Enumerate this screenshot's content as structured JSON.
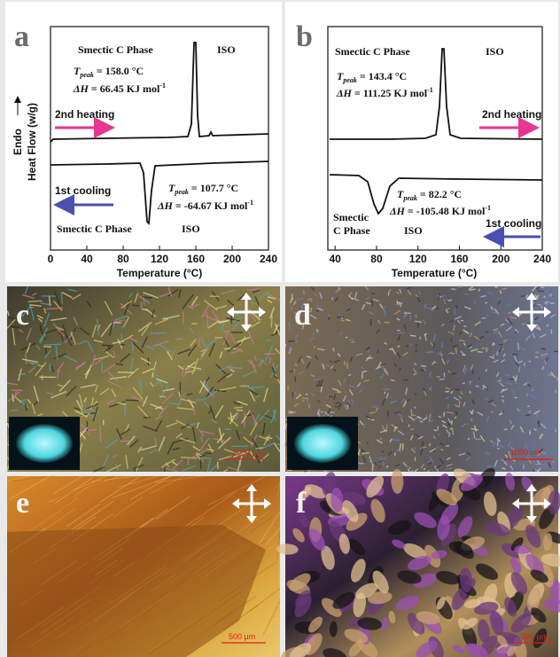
{
  "panels": [
    {
      "label": "a",
      "ylabel_top": "Endo",
      "ylabel": "Heat Flow  (w/g)",
      "xlabel": "Temperature (°C)",
      "xlim": [
        0,
        240
      ],
      "xticks": [
        0,
        40,
        80,
        120,
        160,
        200,
        240
      ],
      "heating": {
        "phase": "Smectic C Phase",
        "iso": "ISO",
        "arrow": "2nd heating",
        "tpeak": {
          "symbol": "T",
          "sub": "peak",
          "text": " = 158.0 °C"
        },
        "dh": {
          "symbol": "ΔH",
          "text": " =  66.45  KJ mol",
          "sup": "-1"
        }
      },
      "cooling": {
        "phase": "Smectic C Phase",
        "iso": "ISO",
        "arrow": "1st cooling",
        "tpeak": {
          "symbol": "T",
          "sub": "peak",
          "text": " = 107.7 °C"
        },
        "dh": {
          "symbol": "ΔH",
          "text": " = -64.67  KJ mol",
          "sup": "-1"
        }
      }
    },
    {
      "label": "b",
      "ylabel_top": "Endo",
      "ylabel": "Heat Flow  (w/g)",
      "xlabel": "Temperature (°C)",
      "xlim": [
        33,
        240
      ],
      "xticks": [
        40,
        80,
        120,
        160,
        200,
        240
      ],
      "heating": {
        "phase": "Smectic C Phase",
        "iso": "ISO",
        "arrow": "2nd heating",
        "tpeak": {
          "symbol": "T",
          "sub": "peak",
          "text": " = 143.4 °C"
        },
        "dh": {
          "symbol": "ΔH",
          "text": " =  111.25  KJ mol",
          "sup": "-1"
        }
      },
      "cooling": {
        "phase_line1": "Smectic",
        "phase_line2": "C Phase",
        "iso": "ISO",
        "arrow": "1st cooling",
        "tpeak": {
          "symbol": "T",
          "sub": "peak",
          "text": " = 82.2 °C"
        },
        "dh": {
          "symbol": "ΔH",
          "text": " = -105.48  KJ mol",
          "sup": "-1"
        }
      }
    }
  ],
  "images": [
    {
      "label": "c",
      "scale": "1000 μm"
    },
    {
      "label": "d",
      "scale": "1000 μm"
    },
    {
      "label": "e",
      "scale": "500 μm"
    },
    {
      "label": "f",
      "scale": "500 μm"
    }
  ]
}
